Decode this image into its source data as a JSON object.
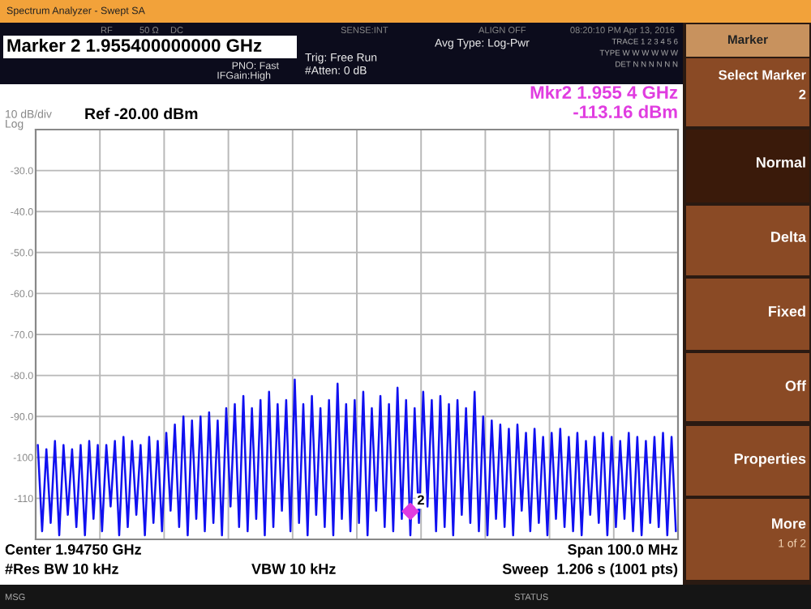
{
  "chart_data": {
    "type": "line",
    "title": "Marker 2 1.955400000000 GHz",
    "categories": [
      null,
      null,
      null,
      null,
      null,
      null,
      null,
      null,
      null,
      null,
      null,
      null,
      null,
      null,
      null,
      null,
      null,
      null,
      null,
      null,
      null,
      null,
      null,
      null,
      null,
      null,
      null,
      null,
      null,
      null,
      null,
      null,
      null,
      null,
      null,
      null,
      null,
      null,
      null,
      null,
      null,
      null,
      null,
      null,
      null,
      null,
      null,
      null,
      null,
      null,
      null,
      null,
      null,
      null,
      null,
      null,
      null,
      null,
      null,
      null,
      null,
      null,
      null,
      null,
      null,
      null,
      null,
      null,
      null,
      null,
      null,
      null,
      null,
      null,
      null,
      null,
      null,
      null,
      null,
      null,
      null,
      null,
      null,
      null,
      null,
      null,
      null,
      null,
      null,
      null,
      null,
      null,
      null,
      null,
      null,
      null,
      null,
      null,
      null,
      null,
      null,
      null,
      null,
      null,
      null,
      null,
      null,
      null,
      null,
      null,
      null,
      null,
      null,
      null,
      null,
      null,
      null,
      null,
      null,
      null,
      null,
      null,
      null,
      null,
      null,
      null,
      null,
      null,
      null,
      null,
      null,
      null,
      null,
      null,
      null,
      null,
      null,
      null,
      null,
      null,
      null,
      null,
      null,
      null,
      null,
      null,
      null,
      null,
      null,
      null
    ],
    "series": [
      {
        "color": "#1010f0",
        "values": [
          -97,
          -118,
          -98,
          -116,
          -96,
          -119,
          -97,
          -114,
          -98,
          -117,
          -97,
          -119,
          -96,
          -115,
          -97,
          -118,
          -97,
          -112,
          -96,
          -119,
          -95,
          -117,
          -96,
          -114,
          -97,
          -119,
          -95,
          -116,
          -96,
          -118,
          -94,
          -113,
          -92,
          -117,
          -90,
          -119,
          -91,
          -115,
          -90,
          -118,
          -89,
          -116,
          -91,
          -119,
          -88,
          -112,
          -87,
          -117,
          -85,
          -118,
          -88,
          -115,
          -86,
          -119,
          -84,
          -117,
          -87,
          -113,
          -86,
          -118,
          -81,
          -116,
          -87,
          -119,
          -85,
          -114,
          -88,
          -117,
          -86,
          -119,
          -82,
          -115,
          -87,
          -118,
          -86,
          -116,
          -84,
          -119,
          -88,
          -113,
          -85,
          -117,
          -87,
          -118,
          -83,
          -115,
          -86,
          -119,
          -88,
          -116,
          -84,
          -112,
          -86,
          -118,
          -85,
          -117,
          -87,
          -119,
          -86,
          -114,
          -88,
          -116,
          -84,
          -118,
          -90,
          -119,
          -91,
          -115,
          -92,
          -117,
          -93,
          -119,
          -92,
          -113,
          -94,
          -118,
          -93,
          -116,
          -95,
          -119,
          -94,
          -115,
          -93,
          -117,
          -95,
          -118,
          -94,
          -119,
          -96,
          -114,
          -95,
          -116,
          -94,
          -119,
          -95,
          -117,
          -96,
          -115,
          -94,
          -118,
          -95,
          -119,
          -96,
          -116,
          -95,
          -117,
          -94,
          -119,
          -95,
          -118
        ]
      },
      {
        "type": "scatter",
        "color": "#e03ce0",
        "values": [
          null,
          null,
          null,
          null,
          null,
          null,
          null,
          null,
          null,
          null,
          null,
          null,
          null,
          null,
          null,
          null,
          null,
          null,
          null,
          null,
          null,
          null,
          null,
          null,
          null,
          null,
          null,
          null,
          null,
          null,
          null,
          null,
          null,
          null,
          null,
          null,
          null,
          null,
          null,
          null,
          null,
          null,
          null,
          null,
          null,
          null,
          null,
          null,
          null,
          null,
          null,
          null,
          null,
          null,
          null,
          null,
          null,
          null,
          null,
          null,
          null,
          null,
          null,
          null,
          null,
          null,
          null,
          null,
          null,
          null,
          null,
          null,
          null,
          null,
          null,
          null,
          null,
          null,
          null,
          null,
          null,
          null,
          null,
          null,
          null,
          null,
          null,
          -113.16,
          null,
          null,
          null,
          null,
          null,
          null,
          null,
          null,
          null,
          null,
          null,
          null,
          null,
          null,
          null,
          null,
          null,
          null,
          null,
          null,
          null,
          null,
          null,
          null,
          null,
          null,
          null,
          null,
          null,
          null,
          null,
          null,
          null,
          null,
          null,
          null,
          null,
          null,
          null,
          null,
          null,
          null,
          null,
          null,
          null,
          null,
          null,
          null,
          null,
          null,
          null,
          null,
          null,
          null,
          null,
          null,
          null,
          null,
          null,
          null,
          null,
          null
        ]
      }
    ],
    "ylim": [
      -120,
      -20
    ],
    "yticks": [
      {
        "value": -20,
        "label": null
      },
      {
        "value": -30,
        "label": "-30.0"
      },
      {
        "value": -40,
        "label": "-40.0"
      },
      {
        "value": -50,
        "label": "-50.0"
      },
      {
        "value": -60,
        "label": "-60.0"
      },
      {
        "value": -70,
        "label": "-70.0"
      },
      {
        "value": -80,
        "label": "-80.0"
      },
      {
        "value": -90,
        "label": "-90.0"
      },
      -100,
      -110,
      {
        "value": -120,
        "label": null
      }
    ],
    "grid": true,
    "tick_labels": "y",
    "line_style": "solid",
    "annotations": [
      "Spectrum Analyzer - Swept SA",
      "RF",
      "50 Ω",
      "DC",
      "SENSE:INT",
      "ALIGN OFF",
      "08:20:10 PM Apr 13, 2016",
      "PNO: Fast",
      "IFGain:High",
      "Trig: Free Run",
      "#Atten: 0 dB",
      "Avg Type: Log-Pwr",
      "TRACE 1 2 3 4 5 6",
      "TYPE W W W W W W",
      "DET N N N N N N",
      "10 dB/div",
      "Log",
      "Ref -20.00 dBm",
      "Mkr2 1.955 4 GHz",
      "-113.16 dBm",
      "Center 1.94750 GHz",
      "#Res BW 10 kHz",
      "VBW 10 kHz",
      "Span 100.0 MHz",
      "Sweep  1.206 s (1001 pts)",
      "MSG",
      "STATUS",
      "Marker",
      "Select Marker",
      "2",
      "Normal",
      "Delta",
      "Fixed",
      "Off",
      "Properties",
      "More",
      "1 of 2",
      {
        "text": "2",
        "y": -113.16
      }
    ]
  }
}
